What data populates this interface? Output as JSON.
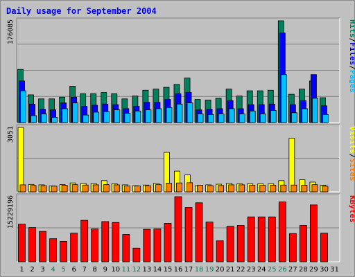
{
  "title": "Daily usage for September 2004",
  "days": [
    "1",
    "2",
    "3",
    "4",
    "5",
    "6",
    "7",
    "8",
    "9",
    "10",
    "11",
    "12",
    "13",
    "14",
    "15",
    "16",
    "17",
    "18",
    "19",
    "20",
    "21",
    "22",
    "23",
    "24",
    "25",
    "26",
    "27",
    "28",
    "29",
    "30",
    "31"
  ],
  "weekend_days": [
    4,
    5,
    11,
    12,
    18,
    19,
    25,
    26
  ],
  "colors": {
    "background": "#c0c0c0",
    "hits": "#00805c",
    "files": "#0000ff",
    "pages": "#00c0ff",
    "visits": "#ff8000",
    "sites": "#ffff00",
    "kbytes": "#ff0000",
    "title": "#0000ff",
    "weekday_label": "#000000",
    "weekend_label": "#00805c"
  },
  "chart_data": [
    {
      "type": "bar",
      "name": "top-panel",
      "max_label": "176085",
      "ylim": [
        0,
        176085
      ],
      "legend": [
        {
          "text": "Hits",
          "color": "#00805c"
        },
        {
          "text": "/",
          "color": "#000000"
        },
        {
          "text": "Files",
          "color": "#0000ff"
        },
        {
          "text": "/",
          "color": "#000000"
        },
        {
          "text": "Pages",
          "color": "#00c0ff"
        }
      ],
      "series": [
        {
          "name": "Hits",
          "values": [
            92000,
            48000,
            41000,
            41000,
            44000,
            63000,
            50000,
            50000,
            52000,
            50000,
            41000,
            46000,
            56000,
            58000,
            61000,
            66000,
            77000,
            40000,
            39000,
            42000,
            58000,
            46000,
            55000,
            55000,
            56000,
            176085,
            49000,
            58000,
            72000,
            43000,
            0
          ]
        },
        {
          "name": "Files",
          "values": [
            72000,
            32000,
            23000,
            22000,
            34000,
            44000,
            28000,
            30000,
            32000,
            31000,
            24000,
            28000,
            35000,
            35000,
            40000,
            50000,
            52000,
            22000,
            23000,
            24000,
            38000,
            24000,
            31000,
            31000,
            32000,
            155000,
            31000,
            38000,
            83000,
            29000,
            0
          ]
        },
        {
          "name": "Pages",
          "values": [
            55000,
            12000,
            15000,
            9000,
            24000,
            34000,
            13000,
            18000,
            19000,
            22000,
            16000,
            20000,
            22000,
            24000,
            26000,
            32000,
            34000,
            15000,
            14000,
            15000,
            24000,
            15000,
            20000,
            15000,
            21000,
            83000,
            17000,
            24000,
            42000,
            14000,
            0
          ]
        }
      ]
    },
    {
      "type": "bar",
      "name": "middle-panel",
      "max_label": "3051",
      "ylim": [
        0,
        3051
      ],
      "legend": [
        {
          "text": "Visits",
          "color": "#ffff00"
        },
        {
          "text": "/",
          "color": "#000000"
        },
        {
          "text": "Sites",
          "color": "#ff8000"
        }
      ],
      "series": [
        {
          "name": "Visits",
          "values": [
            3051,
            350,
            330,
            280,
            340,
            420,
            400,
            390,
            530,
            380,
            330,
            290,
            320,
            400,
            1870,
            980,
            800,
            290,
            330,
            360,
            410,
            380,
            380,
            380,
            380,
            530,
            2540,
            570,
            460,
            310,
            0
          ]
        },
        {
          "name": "Sites",
          "values": [
            330,
            300,
            290,
            270,
            310,
            340,
            320,
            330,
            340,
            330,
            280,
            280,
            290,
            340,
            410,
            420,
            430,
            310,
            290,
            300,
            330,
            330,
            310,
            310,
            310,
            320,
            320,
            310,
            340,
            270,
            0
          ]
        }
      ]
    },
    {
      "type": "bar",
      "name": "bottom-panel",
      "max_label": "15229196",
      "ylim": [
        0,
        15229196
      ],
      "legend": [
        {
          "text": "KBytes",
          "color": "#ff0000"
        }
      ],
      "series": [
        {
          "name": "KBytes",
          "values": [
            8800000,
            8000000,
            7100000,
            5400000,
            4800000,
            6700000,
            9700000,
            7700000,
            9400000,
            9200000,
            6400000,
            3200000,
            7600000,
            7700000,
            9000000,
            15229196,
            12700000,
            13800000,
            9300000,
            4900000,
            8300000,
            8500000,
            10500000,
            10500000,
            10500000,
            14000000,
            6600000,
            8500000,
            13300000,
            6700000,
            0
          ]
        }
      ]
    }
  ]
}
